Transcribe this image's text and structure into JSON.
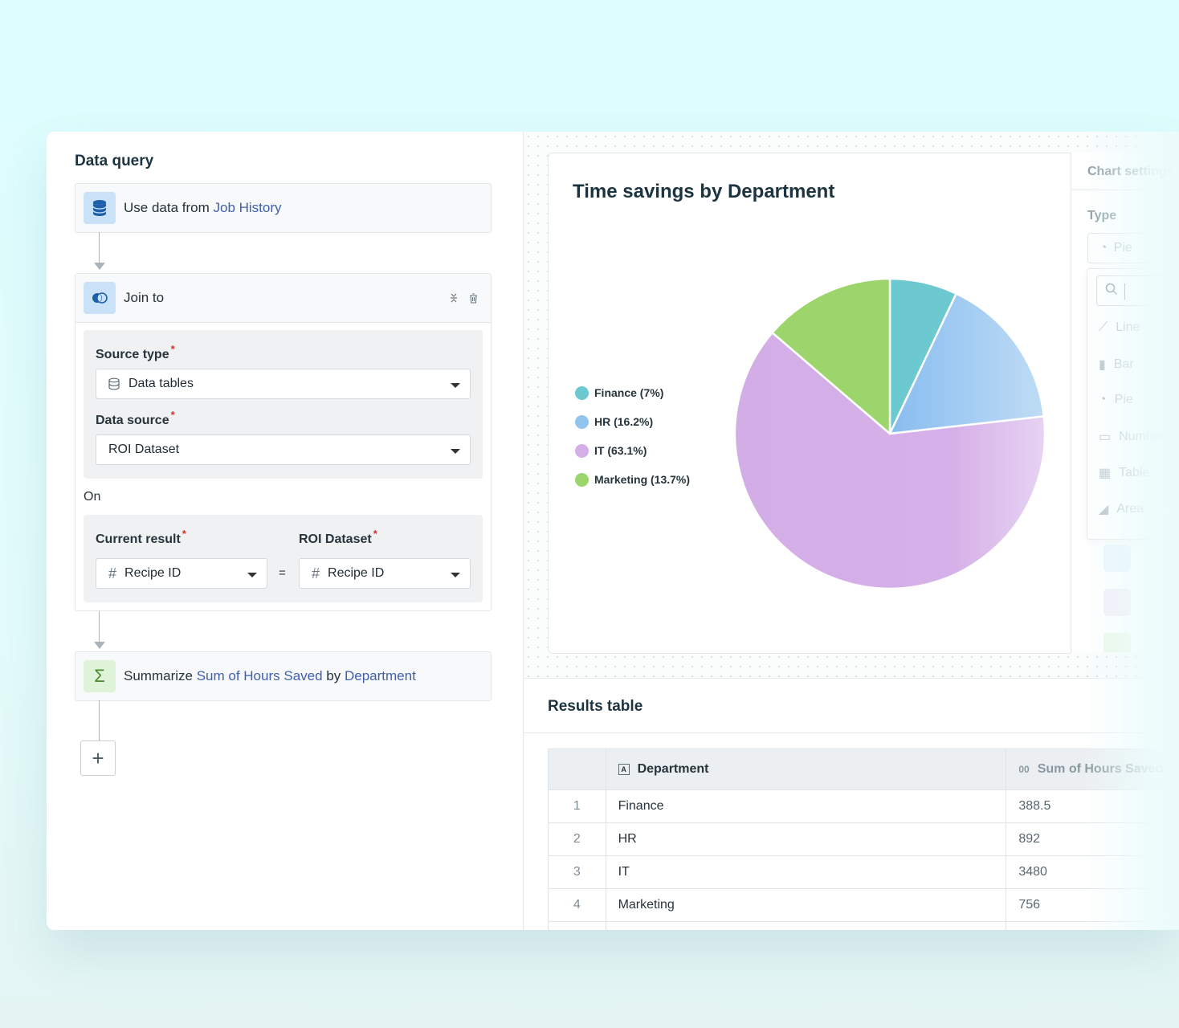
{
  "left_panel": {
    "title": "Data query",
    "step1": {
      "prefix": "Use data from",
      "source": "Job History"
    },
    "join": {
      "title": "Join to",
      "source_type_label": "Source type",
      "source_type_value": "Data tables",
      "data_source_label": "Data source",
      "data_source_value": "ROI Dataset",
      "on_label": "On",
      "current_result_label": "Current result",
      "current_result_value": "Recipe ID",
      "equals": "=",
      "roi_dataset_label": "ROI Dataset",
      "roi_dataset_value": "Recipe ID",
      "required_mark": "*"
    },
    "summarize": {
      "prefix": "Summarize",
      "metric": "Sum of Hours Saved",
      "by": "by",
      "dimension": "Department"
    },
    "add_label": "+"
  },
  "chart_panel": {
    "title": "Time savings by Department",
    "settings": {
      "title": "Chart settings",
      "type_label": "Type",
      "selected": "Pie",
      "options": [
        "Line",
        "Bar",
        "Pie",
        "Number",
        "Table",
        "Area"
      ]
    }
  },
  "chart_data": {
    "type": "pie",
    "title": "Time savings by Department",
    "categories": [
      "Finance",
      "HR",
      "IT",
      "Marketing"
    ],
    "values": [
      388.5,
      892,
      3480,
      756
    ],
    "percentages": [
      7,
      16.2,
      63.1,
      13.7
    ],
    "legend_labels": [
      "Finance (7%)",
      "HR (16.2%)",
      "IT (63.1%)",
      "Marketing (13.7%)"
    ],
    "colors": [
      "#6cc9cf",
      "#92c4f0",
      "#d6aee7",
      "#9bd56c"
    ],
    "legend_position": "left"
  },
  "results": {
    "title": "Results table",
    "columns": [
      "Department",
      "Sum of Hours Saved"
    ],
    "col_type_icons": [
      "A",
      "00"
    ],
    "rows": [
      {
        "index": "1",
        "department": "Finance",
        "hours": "388.5"
      },
      {
        "index": "2",
        "department": "HR",
        "hours": "892"
      },
      {
        "index": "3",
        "department": "IT",
        "hours": "3480"
      },
      {
        "index": "4",
        "department": "Marketing",
        "hours": "756"
      }
    ]
  }
}
